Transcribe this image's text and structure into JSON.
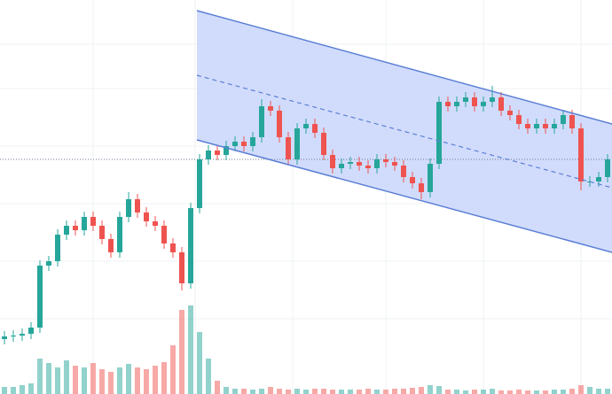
{
  "chart_data": {
    "type": "candlestick",
    "xlim": [
      -0.5,
      68.5
    ],
    "ylim": [
      0,
      445
    ],
    "xticks": [
      10,
      21.5,
      32.5,
      43,
      54,
      65
    ],
    "yticks": [
      85,
      150,
      215,
      280,
      345,
      395
    ],
    "grid": true,
    "up_color": "#26a69a",
    "down_color": "#ef5350",
    "open": [
      62,
      65,
      66,
      68,
      75,
      145,
      150,
      180,
      190,
      185,
      200,
      190,
      175,
      160,
      200,
      220,
      205,
      195,
      190,
      170,
      160,
      125,
      210,
      265,
      275,
      270,
      280,
      285,
      280,
      290,
      325,
      320,
      290,
      265,
      300,
      305,
      295,
      270,
      255,
      260,
      262,
      258,
      255,
      265,
      262,
      258,
      245,
      238,
      228,
      260,
      330,
      325,
      330,
      335,
      325,
      330,
      335,
      320,
      315,
      305,
      300,
      305,
      300,
      305,
      315,
      300,
      240,
      240,
      245
    ],
    "high": [
      71,
      72,
      74,
      81,
      151,
      156,
      186,
      196,
      196,
      206,
      206,
      196,
      181,
      206,
      228,
      226,
      211,
      201,
      196,
      176,
      166,
      216,
      271,
      281,
      281,
      286,
      291,
      291,
      296,
      333,
      331,
      326,
      296,
      306,
      311,
      311,
      301,
      276,
      266,
      268,
      268,
      264,
      271,
      271,
      268,
      264,
      251,
      244,
      266,
      336,
      336,
      336,
      341,
      341,
      336,
      348,
      341,
      326,
      321,
      311,
      311,
      311,
      311,
      321,
      321,
      306,
      246,
      251,
      271
    ],
    "low": [
      56,
      59,
      60,
      62,
      69,
      139,
      144,
      174,
      179,
      179,
      184,
      169,
      154,
      154,
      194,
      199,
      189,
      184,
      164,
      154,
      117,
      119,
      204,
      259,
      264,
      264,
      274,
      274,
      274,
      284,
      314,
      284,
      259,
      259,
      294,
      289,
      264,
      249,
      249,
      254,
      252,
      249,
      249,
      256,
      252,
      239,
      232,
      220,
      222,
      254,
      319,
      319,
      324,
      319,
      319,
      324,
      314,
      309,
      299,
      294,
      294,
      294,
      294,
      299,
      294,
      230,
      234,
      234,
      239
    ],
    "close": [
      65,
      66,
      68,
      75,
      145,
      150,
      180,
      190,
      185,
      200,
      190,
      175,
      160,
      200,
      220,
      205,
      195,
      190,
      170,
      160,
      125,
      210,
      265,
      275,
      270,
      280,
      285,
      280,
      290,
      325,
      320,
      290,
      265,
      300,
      305,
      295,
      270,
      255,
      260,
      262,
      258,
      255,
      265,
      262,
      258,
      245,
      238,
      228,
      260,
      330,
      325,
      330,
      335,
      325,
      330,
      335,
      320,
      315,
      305,
      300,
      305,
      300,
      305,
      315,
      300,
      240,
      240,
      245,
      265
    ],
    "volume": [
      8,
      8,
      10,
      12,
      40,
      35,
      30,
      38,
      32,
      30,
      35,
      28,
      25,
      30,
      34,
      30,
      28,
      32,
      36,
      55,
      95,
      100,
      70,
      40,
      15,
      8,
      6,
      6,
      5,
      6,
      8,
      6,
      5,
      6,
      5,
      6,
      6,
      5,
      5,
      5,
      5,
      6,
      5,
      5,
      6,
      6,
      7,
      8,
      10,
      9,
      5,
      5,
      4,
      5,
      5,
      6,
      4,
      4,
      5,
      4,
      4,
      4,
      5,
      5,
      6,
      10,
      8,
      6,
      6
    ],
    "volume_lim": [
      0,
      110
    ],
    "price_line": 265,
    "channel": {
      "x": [
        21.7,
        68.5
      ],
      "upper": [
        433,
        305
      ],
      "middle": [
        360,
        233
      ],
      "lower": [
        287,
        160
      ],
      "line_color": "#5b7fd6",
      "fill_color": "#c9d6fb"
    }
  }
}
